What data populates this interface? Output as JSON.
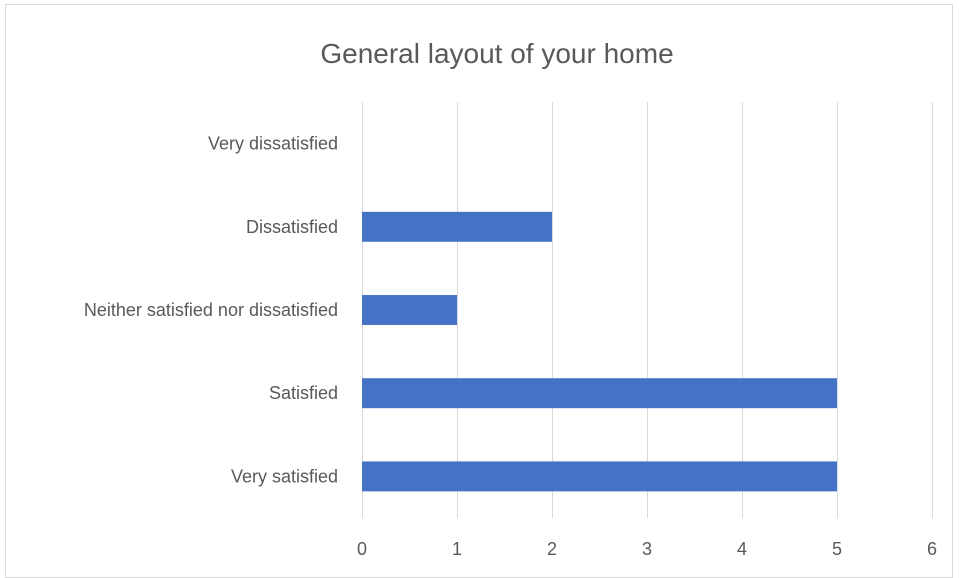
{
  "chart_data": {
    "type": "bar",
    "orientation": "horizontal",
    "title": "General layout of your home",
    "categories": [
      "Very satisfied",
      "Satisfied",
      "Neither satisfied nor dissatisfied",
      "Dissatisfied",
      "Very dissatisfied"
    ],
    "values": [
      5,
      5,
      1,
      2,
      0
    ],
    "xlim": [
      0,
      6
    ],
    "xticks": [
      0,
      1,
      2,
      3,
      4,
      5,
      6
    ],
    "xlabel": "",
    "ylabel": "",
    "grid": "vertical",
    "legend": "none",
    "bar_color": "#4472c4"
  }
}
